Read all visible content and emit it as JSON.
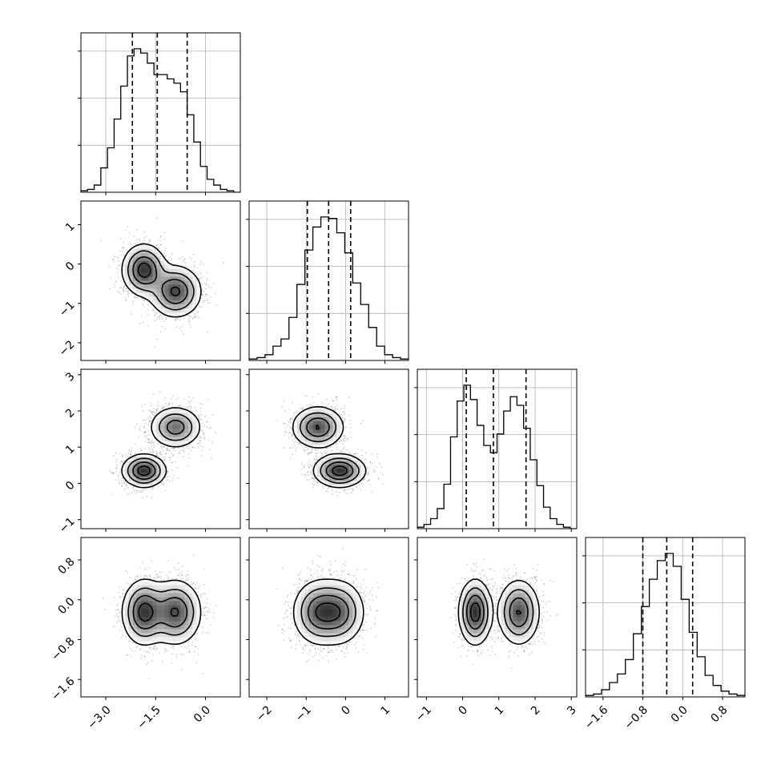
{
  "chart_data": {
    "type": "scatter",
    "kind": "corner-plot",
    "n_params": 4,
    "grid": true,
    "params": [
      {
        "range": [
          -3.75,
          1.05
        ],
        "ticks": [
          -3.0,
          -1.5,
          0.0
        ],
        "tick_labels": [
          "−3.0",
          "−1.5",
          "0.0"
        ],
        "quantiles": [
          -2.2,
          -1.45,
          -0.55
        ],
        "hist": [
          0.01,
          0.02,
          0.05,
          0.17,
          0.31,
          0.51,
          0.74,
          0.95,
          1.0,
          0.97,
          0.9,
          0.82,
          0.82,
          0.79,
          0.76,
          0.7,
          0.54,
          0.35,
          0.18,
          0.09,
          0.05,
          0.02,
          0.01,
          0.0
        ]
      },
      {
        "range": [
          -2.45,
          1.6
        ],
        "ticks": [
          -2,
          -1,
          0,
          1
        ],
        "tick_labels": [
          "−2",
          "−1",
          "0",
          "1"
        ],
        "quantiles": [
          -0.97,
          -0.43,
          0.13
        ],
        "hist": [
          0.01,
          0.02,
          0.04,
          0.1,
          0.15,
          0.3,
          0.53,
          0.77,
          0.93,
          1.0,
          0.99,
          0.89,
          0.75,
          0.54,
          0.39,
          0.23,
          0.1,
          0.04,
          0.02,
          0.01
        ]
      },
      {
        "range": [
          -1.25,
          3.15
        ],
        "ticks": [
          -1,
          0,
          1,
          2,
          3
        ],
        "tick_labels": [
          "−1",
          "0",
          "1",
          "2",
          "3"
        ],
        "quantiles": [
          0.1,
          0.85,
          1.75
        ],
        "hist": [
          0.01,
          0.03,
          0.07,
          0.14,
          0.31,
          0.64,
          0.89,
          1.0,
          0.9,
          0.72,
          0.58,
          0.53,
          0.66,
          0.82,
          0.92,
          0.86,
          0.7,
          0.48,
          0.3,
          0.15,
          0.07,
          0.03,
          0.01,
          0.0
        ]
      },
      {
        "range": [
          -1.95,
          1.25
        ],
        "ticks": [
          -1.6,
          -0.8,
          0.0,
          0.8
        ],
        "tick_labels": [
          "−1.6",
          "−0.8",
          "0.0",
          "0.8"
        ],
        "quantiles": [
          -0.8,
          -0.32,
          0.2
        ],
        "hist": [
          0.01,
          0.02,
          0.05,
          0.1,
          0.16,
          0.26,
          0.44,
          0.63,
          0.82,
          0.95,
          1.0,
          0.91,
          0.68,
          0.45,
          0.28,
          0.15,
          0.08,
          0.04,
          0.02,
          0.01
        ]
      }
    ],
    "modes": [
      {
        "mu": [
          -1.85,
          -0.15,
          0.35,
          -0.25
        ],
        "sd": [
          0.32,
          0.32,
          0.22,
          0.32
        ],
        "weight": 0.48
      },
      {
        "mu": [
          -0.9,
          -0.7,
          1.55,
          -0.25
        ],
        "sd": [
          0.38,
          0.32,
          0.28,
          0.32
        ],
        "weight": 0.52
      }
    ],
    "contour_levels": [
      0.12,
      0.32,
      0.58,
      0.85
    ]
  }
}
